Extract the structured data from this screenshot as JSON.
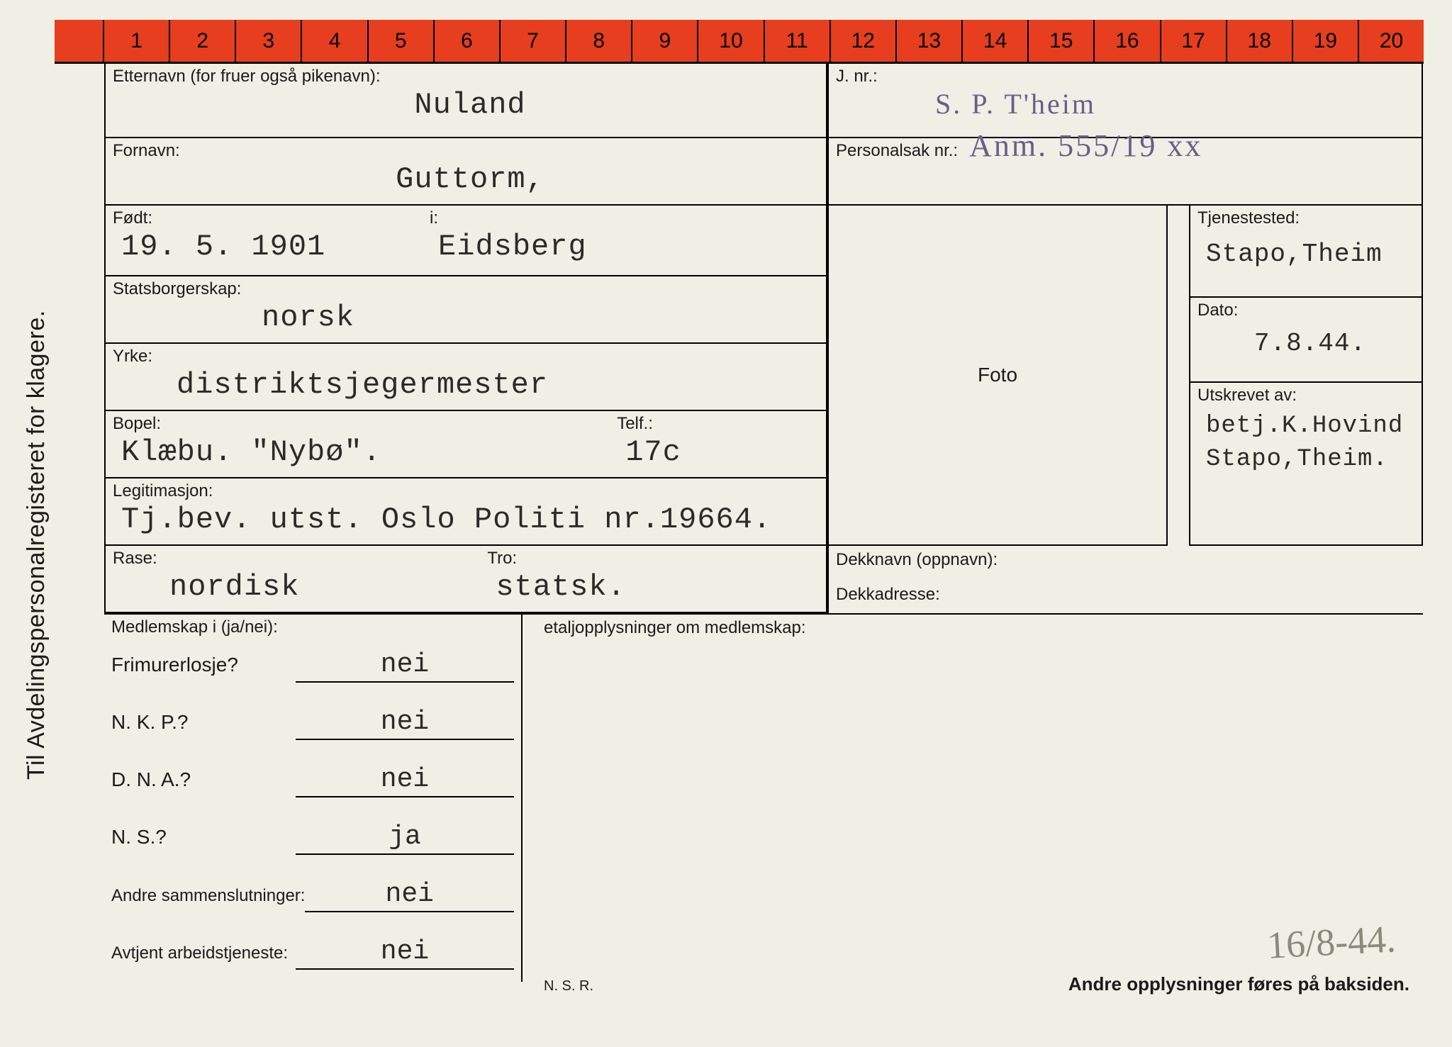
{
  "meta": {
    "vertical_title": "Til Avdelingspersonalregisteret for klagere."
  },
  "ruler": {
    "numbers": [
      "1",
      "2",
      "3",
      "4",
      "5",
      "6",
      "7",
      "8",
      "9",
      "10",
      "11",
      "12",
      "13",
      "14",
      "15",
      "16",
      "17",
      "18",
      "19",
      "20"
    ]
  },
  "left": {
    "etternavn": {
      "label": "Etternavn (for fruer også pikenavn):",
      "value": "Nuland"
    },
    "fornavn": {
      "label": "Fornavn:",
      "value": "Guttorm,"
    },
    "fodt": {
      "label": "Født:",
      "value": "19. 5. 1901"
    },
    "fodt_i": {
      "label": "i:",
      "value": "Eidsberg"
    },
    "statsb": {
      "label": "Statsborgerskap:",
      "value": "norsk"
    },
    "yrke": {
      "label": "Yrke:",
      "value": "distriktsjegermester"
    },
    "bopel": {
      "label": "Bopel:",
      "value": "Klæbu. \"Nybø\"."
    },
    "telf": {
      "label": "Telf.:",
      "value": "17c"
    },
    "legit": {
      "label": "Legitimasjon:",
      "value": "Tj.bev. utst. Oslo Politi nr.19664."
    },
    "rase": {
      "label": "Rase:",
      "value": "nordisk"
    },
    "tro": {
      "label": "Tro:",
      "value": "statsk."
    }
  },
  "right_top": {
    "jnr": {
      "label": "J. nr.:",
      "stamp1": "S. P. T'heim",
      "stamp2": "Anm. 555/19 xx"
    },
    "personalsak": {
      "label": "Personalsak nr.:"
    }
  },
  "right_side": {
    "tjenestested": {
      "label": "Tjenestested:",
      "value": "Stapo,Theim"
    },
    "dato": {
      "label": "Dato:",
      "value": "7.8.44."
    },
    "utskrevet": {
      "label": "Utskrevet av:",
      "value1": "betj.K.Hovind",
      "value2": "Stapo,Theim."
    }
  },
  "foto_label": "Foto",
  "dekk": {
    "dekknavn": "Dekknavn (oppnavn):",
    "dekkadresse": "Dekkadresse:"
  },
  "membership": {
    "heading": "Medlemskap i (ja/nei):",
    "detail_heading": "etaljopplysninger om medlemskap:",
    "rows": [
      {
        "label": "Frimurerlosje?",
        "value": "nei"
      },
      {
        "label": "N. K. P.?",
        "value": "nei"
      },
      {
        "label": "D. N. A.?",
        "value": "nei"
      },
      {
        "label": "N. S.?",
        "value": "ja"
      },
      {
        "label": "Andre sammenslutninger:",
        "value": "nei"
      },
      {
        "label": "Avtjent arbeidstjeneste:",
        "value": "nei"
      }
    ]
  },
  "footer": {
    "nsr": "N. S. R.",
    "note": "Andre opplysninger føres på baksiden.",
    "handwritten": "16/8-44."
  },
  "colors": {
    "card_bg": "#efefe5",
    "ruler_bg": "#e63e1f",
    "line": "#000000",
    "stamp": "#6b5e88"
  }
}
